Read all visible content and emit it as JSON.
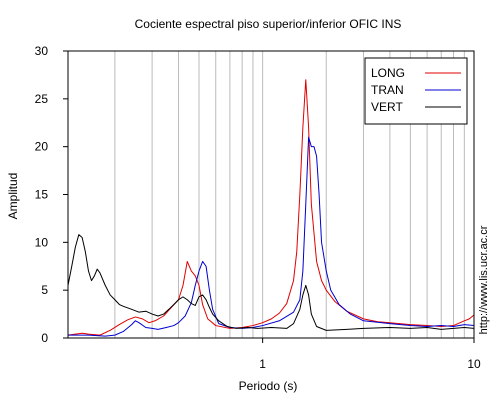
{
  "chart_data": {
    "type": "line",
    "title": "Cociente espectral piso superior/inferior  OFIC INS",
    "xlabel": "Periodo (s)",
    "ylabel": "Amplitud",
    "xscale": "log",
    "xlim": [
      0.12,
      10
    ],
    "ylim": [
      0,
      30
    ],
    "grid": "vertical",
    "legend_position": "top-right",
    "x_tick_labels": [
      {
        "value": 1,
        "label": "1"
      },
      {
        "value": 10,
        "label": "10"
      }
    ],
    "y_ticks": [
      0,
      5,
      10,
      15,
      20,
      25,
      30
    ],
    "source_note": "http://www.lis.ucr.ac.cr",
    "series": [
      {
        "name": "LONG",
        "color": "#e00000",
        "points": [
          [
            0.12,
            0.3
          ],
          [
            0.13,
            0.4
          ],
          [
            0.14,
            0.5
          ],
          [
            0.15,
            0.4
          ],
          [
            0.17,
            0.3
          ],
          [
            0.19,
            0.8
          ],
          [
            0.21,
            1.4
          ],
          [
            0.23,
            1.9
          ],
          [
            0.25,
            2.2
          ],
          [
            0.27,
            2.0
          ],
          [
            0.29,
            1.6
          ],
          [
            0.31,
            1.8
          ],
          [
            0.34,
            2.3
          ],
          [
            0.37,
            3.2
          ],
          [
            0.4,
            4.0
          ],
          [
            0.42,
            5.5
          ],
          [
            0.44,
            8.0
          ],
          [
            0.46,
            7.0
          ],
          [
            0.48,
            6.5
          ],
          [
            0.5,
            5.5
          ],
          [
            0.52,
            3.5
          ],
          [
            0.55,
            2.0
          ],
          [
            0.6,
            1.3
          ],
          [
            0.7,
            1.0
          ],
          [
            0.8,
            1.1
          ],
          [
            0.9,
            1.3
          ],
          [
            1.0,
            1.6
          ],
          [
            1.1,
            2.0
          ],
          [
            1.2,
            2.6
          ],
          [
            1.3,
            3.6
          ],
          [
            1.4,
            6.0
          ],
          [
            1.45,
            9.0
          ],
          [
            1.5,
            15.0
          ],
          [
            1.55,
            22.0
          ],
          [
            1.6,
            27.0
          ],
          [
            1.65,
            22.0
          ],
          [
            1.7,
            14.0
          ],
          [
            1.8,
            8.0
          ],
          [
            1.9,
            6.0
          ],
          [
            2.0,
            5.0
          ],
          [
            2.2,
            3.8
          ],
          [
            2.5,
            2.8
          ],
          [
            3.0,
            2.0
          ],
          [
            3.5,
            1.7
          ],
          [
            4.0,
            1.6
          ],
          [
            5.0,
            1.4
          ],
          [
            6.0,
            1.3
          ],
          [
            7.0,
            1.2
          ],
          [
            8.0,
            1.3
          ],
          [
            9.0,
            1.8
          ],
          [
            9.5,
            2.0
          ],
          [
            10.0,
            2.4
          ]
        ]
      },
      {
        "name": "TRAN",
        "color": "#0000d0",
        "points": [
          [
            0.12,
            0.3
          ],
          [
            0.15,
            0.3
          ],
          [
            0.18,
            0.2
          ],
          [
            0.2,
            0.3
          ],
          [
            0.22,
            0.7
          ],
          [
            0.24,
            1.4
          ],
          [
            0.25,
            1.8
          ],
          [
            0.26,
            1.6
          ],
          [
            0.28,
            1.1
          ],
          [
            0.3,
            1.0
          ],
          [
            0.32,
            0.9
          ],
          [
            0.35,
            1.1
          ],
          [
            0.38,
            1.3
          ],
          [
            0.4,
            1.6
          ],
          [
            0.43,
            2.3
          ],
          [
            0.46,
            3.7
          ],
          [
            0.48,
            5.5
          ],
          [
            0.5,
            7.0
          ],
          [
            0.52,
            8.0
          ],
          [
            0.54,
            7.5
          ],
          [
            0.56,
            5.0
          ],
          [
            0.58,
            3.0
          ],
          [
            0.62,
            1.5
          ],
          [
            0.7,
            1.1
          ],
          [
            0.8,
            1.0
          ],
          [
            0.9,
            1.1
          ],
          [
            1.0,
            1.3
          ],
          [
            1.2,
            1.8
          ],
          [
            1.4,
            2.7
          ],
          [
            1.5,
            4.0
          ],
          [
            1.55,
            7.0
          ],
          [
            1.6,
            14.0
          ],
          [
            1.65,
            21.0
          ],
          [
            1.7,
            20.0
          ],
          [
            1.75,
            20.0
          ],
          [
            1.8,
            19.0
          ],
          [
            1.85,
            15.0
          ],
          [
            1.9,
            10.0
          ],
          [
            2.0,
            7.0
          ],
          [
            2.1,
            5.0
          ],
          [
            2.3,
            3.5
          ],
          [
            2.6,
            2.5
          ],
          [
            3.0,
            1.8
          ],
          [
            4.0,
            1.5
          ],
          [
            5.0,
            1.3
          ],
          [
            6.0,
            1.2
          ],
          [
            7.0,
            1.3
          ],
          [
            8.0,
            1.2
          ],
          [
            9.0,
            1.4
          ],
          [
            10.0,
            1.3
          ]
        ]
      },
      {
        "name": "VERT",
        "color": "#000000",
        "points": [
          [
            0.12,
            5.5
          ],
          [
            0.125,
            7.5
          ],
          [
            0.13,
            9.5
          ],
          [
            0.135,
            10.8
          ],
          [
            0.14,
            10.5
          ],
          [
            0.145,
            9.0
          ],
          [
            0.15,
            7.0
          ],
          [
            0.155,
            6.0
          ],
          [
            0.16,
            6.5
          ],
          [
            0.165,
            7.2
          ],
          [
            0.17,
            6.8
          ],
          [
            0.18,
            5.5
          ],
          [
            0.19,
            4.5
          ],
          [
            0.2,
            4.0
          ],
          [
            0.21,
            3.5
          ],
          [
            0.22,
            3.3
          ],
          [
            0.24,
            3.0
          ],
          [
            0.26,
            2.7
          ],
          [
            0.28,
            2.8
          ],
          [
            0.3,
            2.5
          ],
          [
            0.32,
            2.3
          ],
          [
            0.34,
            2.5
          ],
          [
            0.36,
            3.0
          ],
          [
            0.38,
            3.5
          ],
          [
            0.4,
            4.0
          ],
          [
            0.42,
            4.3
          ],
          [
            0.44,
            4.0
          ],
          [
            0.46,
            3.6
          ],
          [
            0.48,
            3.4
          ],
          [
            0.5,
            4.3
          ],
          [
            0.52,
            4.5
          ],
          [
            0.54,
            4.0
          ],
          [
            0.56,
            3.2
          ],
          [
            0.58,
            2.5
          ],
          [
            0.62,
            1.8
          ],
          [
            0.68,
            1.2
          ],
          [
            0.75,
            1.0
          ],
          [
            0.85,
            1.1
          ],
          [
            0.95,
            1.0
          ],
          [
            1.1,
            1.1
          ],
          [
            1.3,
            1.0
          ],
          [
            1.4,
            1.5
          ],
          [
            1.5,
            3.0
          ],
          [
            1.55,
            4.5
          ],
          [
            1.6,
            5.5
          ],
          [
            1.65,
            4.5
          ],
          [
            1.7,
            2.5
          ],
          [
            1.8,
            1.2
          ],
          [
            2.0,
            0.8
          ],
          [
            2.5,
            0.9
          ],
          [
            3.0,
            1.0
          ],
          [
            4.0,
            1.1
          ],
          [
            5.0,
            1.0
          ],
          [
            6.0,
            1.1
          ],
          [
            7.0,
            0.9
          ],
          [
            8.0,
            1.0
          ],
          [
            9.0,
            1.1
          ],
          [
            10.0,
            1.0
          ]
        ]
      }
    ]
  }
}
